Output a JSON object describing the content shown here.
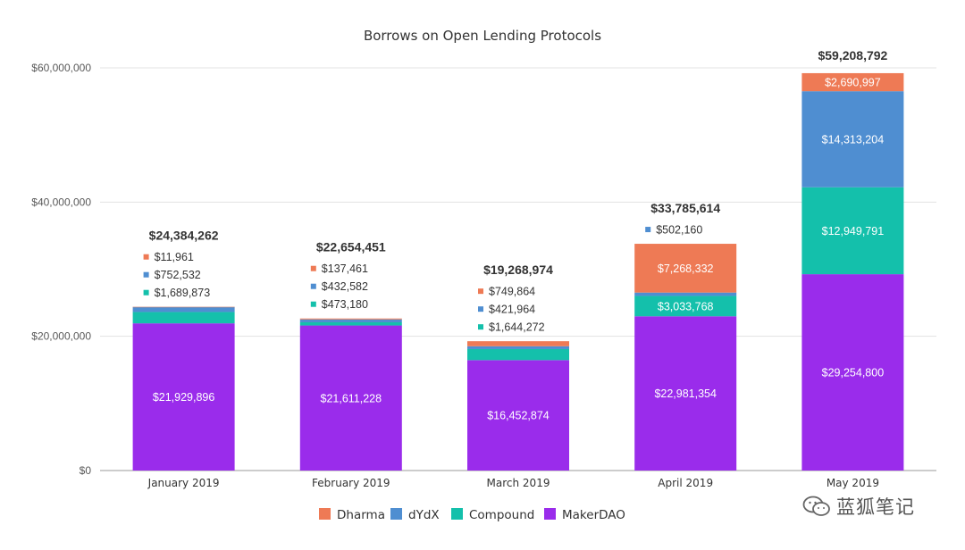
{
  "chart_data": {
    "type": "bar",
    "stacked": true,
    "title": "Borrows on Open Lending Protocols",
    "xlabel": "",
    "ylabel": "",
    "ylim": [
      0,
      60000000
    ],
    "yticks": [
      0,
      20000000,
      40000000,
      60000000
    ],
    "ytick_labels": [
      "$0",
      "$20,000,000",
      "$40,000,000",
      "$60,000,000"
    ],
    "grid": true,
    "legend_position": "bottom",
    "categories": [
      "January 2019",
      "February 2019",
      "March 2019",
      "April 2019",
      "May 2019"
    ],
    "totals": [
      24384262,
      22654451,
      19268974,
      33785614,
      59208792
    ],
    "total_labels": [
      "$24,384,262",
      "$22,654,451",
      "$19,268,974",
      "$33,785,614",
      "$59,208,792"
    ],
    "series": [
      {
        "name": "MakerDAO",
        "color": "#9A2CEB",
        "values": [
          21929896,
          21611228,
          16452874,
          22981354,
          29254800
        ],
        "labels": [
          "$21,929,896",
          "$21,611,228",
          "$16,452,874",
          "$22,981,354",
          "$29,254,800"
        ],
        "label_outside": [
          false,
          false,
          false,
          false,
          false
        ]
      },
      {
        "name": "Compound",
        "color": "#14C0AB",
        "values": [
          1689873,
          473180,
          1644272,
          3033768,
          12949791
        ],
        "labels": [
          "$1,689,873",
          "$473,180",
          "$1,644,272",
          "$3,033,768",
          "$12,949,791"
        ],
        "label_outside": [
          true,
          true,
          true,
          false,
          false
        ]
      },
      {
        "name": "dYdX",
        "color": "#4F8ED1",
        "values": [
          752532,
          432582,
          421964,
          502160,
          14313204
        ],
        "labels": [
          "$752,532",
          "$432,582",
          "$421,964",
          "$502,160",
          "$14,313,204"
        ],
        "label_outside": [
          true,
          true,
          true,
          true,
          false
        ]
      },
      {
        "name": "Dharma",
        "color": "#EE7A55",
        "values": [
          11961,
          137461,
          749864,
          7268332,
          2690997
        ],
        "labels": [
          "$11,961",
          "$137,461",
          "$749,864",
          "$7,268,332",
          "$2,690,997"
        ],
        "label_outside": [
          true,
          true,
          true,
          false,
          false
        ]
      }
    ],
    "legend": [
      {
        "name": "Dharma",
        "color": "#EE7A55"
      },
      {
        "name": "dYdX",
        "color": "#4F8ED1"
      },
      {
        "name": "Compound",
        "color": "#14C0AB"
      },
      {
        "name": "MakerDAO",
        "color": "#9A2CEB"
      }
    ]
  },
  "watermark": {
    "text": "蓝狐笔记",
    "icon": "wechat-icon"
  }
}
